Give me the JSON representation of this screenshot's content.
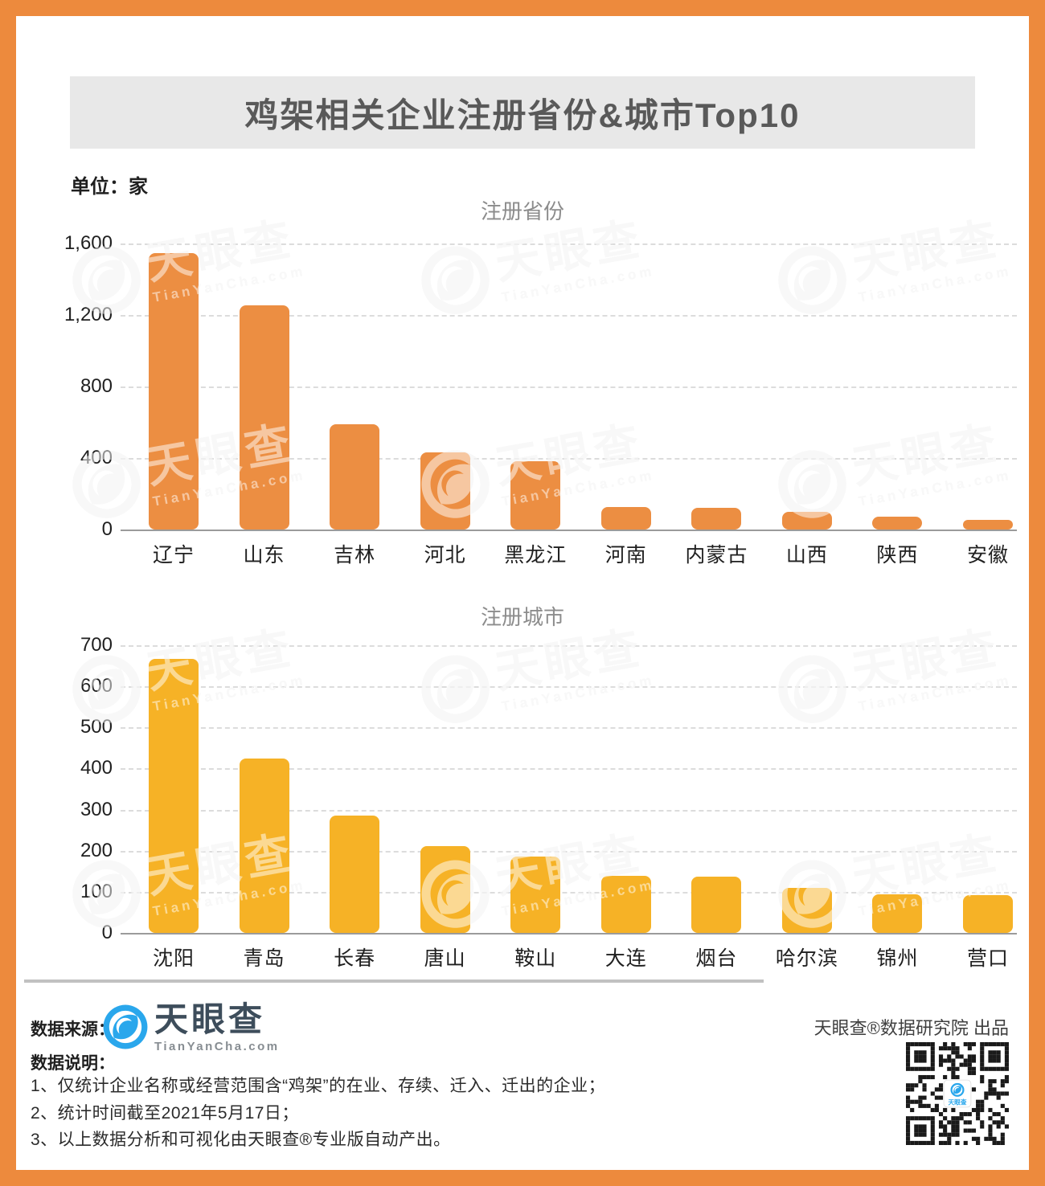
{
  "page": {
    "title": "鸡架相关企业注册省份&城市Top10",
    "unit_label": "单位：家"
  },
  "watermark": {
    "brand": "天眼查",
    "domain": "TianYanCha.com"
  },
  "chart_data": [
    {
      "type": "bar",
      "title": "注册省份",
      "categories": [
        "辽宁",
        "山东",
        "吉林",
        "河北",
        "黑龙江",
        "河南",
        "内蒙古",
        "山西",
        "陕西",
        "安徽"
      ],
      "values": [
        1548,
        1254,
        587,
        431,
        382,
        125,
        121,
        99,
        74,
        54
      ],
      "unit": "家",
      "bar_color": "#EC8E42",
      "ylim": [
        0,
        1600
      ],
      "yticks": [
        0,
        400,
        800,
        1200,
        1600
      ],
      "ytick_labels": [
        "0",
        "400",
        "800",
        "1,200",
        "1,600"
      ],
      "grid": "horizontal-dashed",
      "legend": "none"
    },
    {
      "type": "bar",
      "title": "注册城市",
      "categories": [
        "沈阳",
        "青岛",
        "长春",
        "唐山",
        "鞍山",
        "大连",
        "烟台",
        "哈尔滨",
        "锦州",
        "营口"
      ],
      "values": [
        667,
        425,
        286,
        211,
        186,
        139,
        137,
        109,
        94,
        91
      ],
      "unit": "家",
      "bar_color": "#F6B226",
      "ylim": [
        0,
        700
      ],
      "yticks": [
        0,
        100,
        200,
        300,
        400,
        500,
        600,
        700
      ],
      "ytick_labels": [
        "0",
        "100",
        "200",
        "300",
        "400",
        "500",
        "600",
        "700"
      ],
      "grid": "horizontal-dashed",
      "legend": "none"
    }
  ],
  "footer": {
    "source_label": "数据来源：",
    "logo_text": "天眼查",
    "logo_domain": "TianYanCha.com",
    "produced_by": "天眼查®数据研究院 出品",
    "notes_label": "数据说明：",
    "notes": [
      "1、仅统计企业名称或经营范围含“鸡架”的在业、存续、迁入、迁出的企业；",
      "2、统计时间截至2021年5月17日；",
      "3、以上数据分析和可视化由天眼查®专业版自动产出。"
    ]
  },
  "colors": {
    "frame": "#ED8A3D",
    "banner_bg": "#E8E8E8",
    "banner_text": "#595959",
    "province_bar": "#EC8E42",
    "city_bar": "#F6B226",
    "gridline": "#DCDCDC",
    "axis": "#9B9B9B",
    "logo_blue": "#2AA7EC"
  }
}
